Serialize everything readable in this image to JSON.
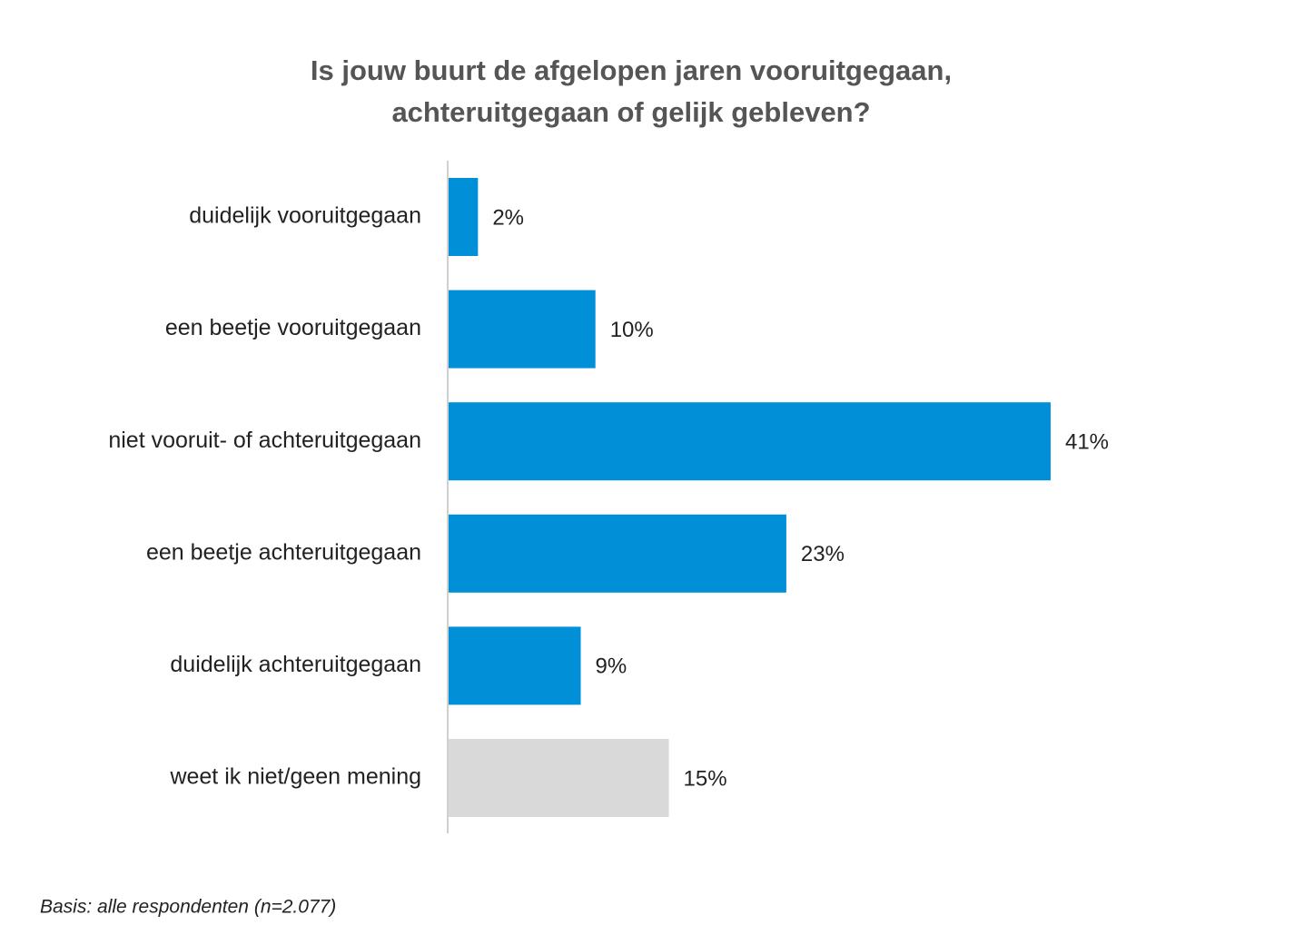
{
  "chart_data": {
    "type": "bar",
    "orientation": "horizontal",
    "title": [
      "Is jouw buurt de afgelopen jaren vooruitgegaan,",
      "achteruitgegaan of gelijk gebleven?"
    ],
    "categories": [
      "duidelijk vooruitgegaan",
      "een beetje vooruitgegaan",
      "niet vooruit- of achteruitgegaan",
      "een beetje achteruitgegaan",
      "duidelijk achteruitgegaan",
      "weet ik niet/geen mening"
    ],
    "values": [
      2,
      10,
      41,
      23,
      9,
      15
    ],
    "value_labels": [
      "2%",
      "10%",
      "41%",
      "23%",
      "9%",
      "15%"
    ],
    "colors": [
      "#0190d8",
      "#0190d8",
      "#0190d8",
      "#0190d8",
      "#0190d8",
      "#d9d9d9"
    ],
    "note": "Basis: alle respondenten (n=2.077)"
  }
}
